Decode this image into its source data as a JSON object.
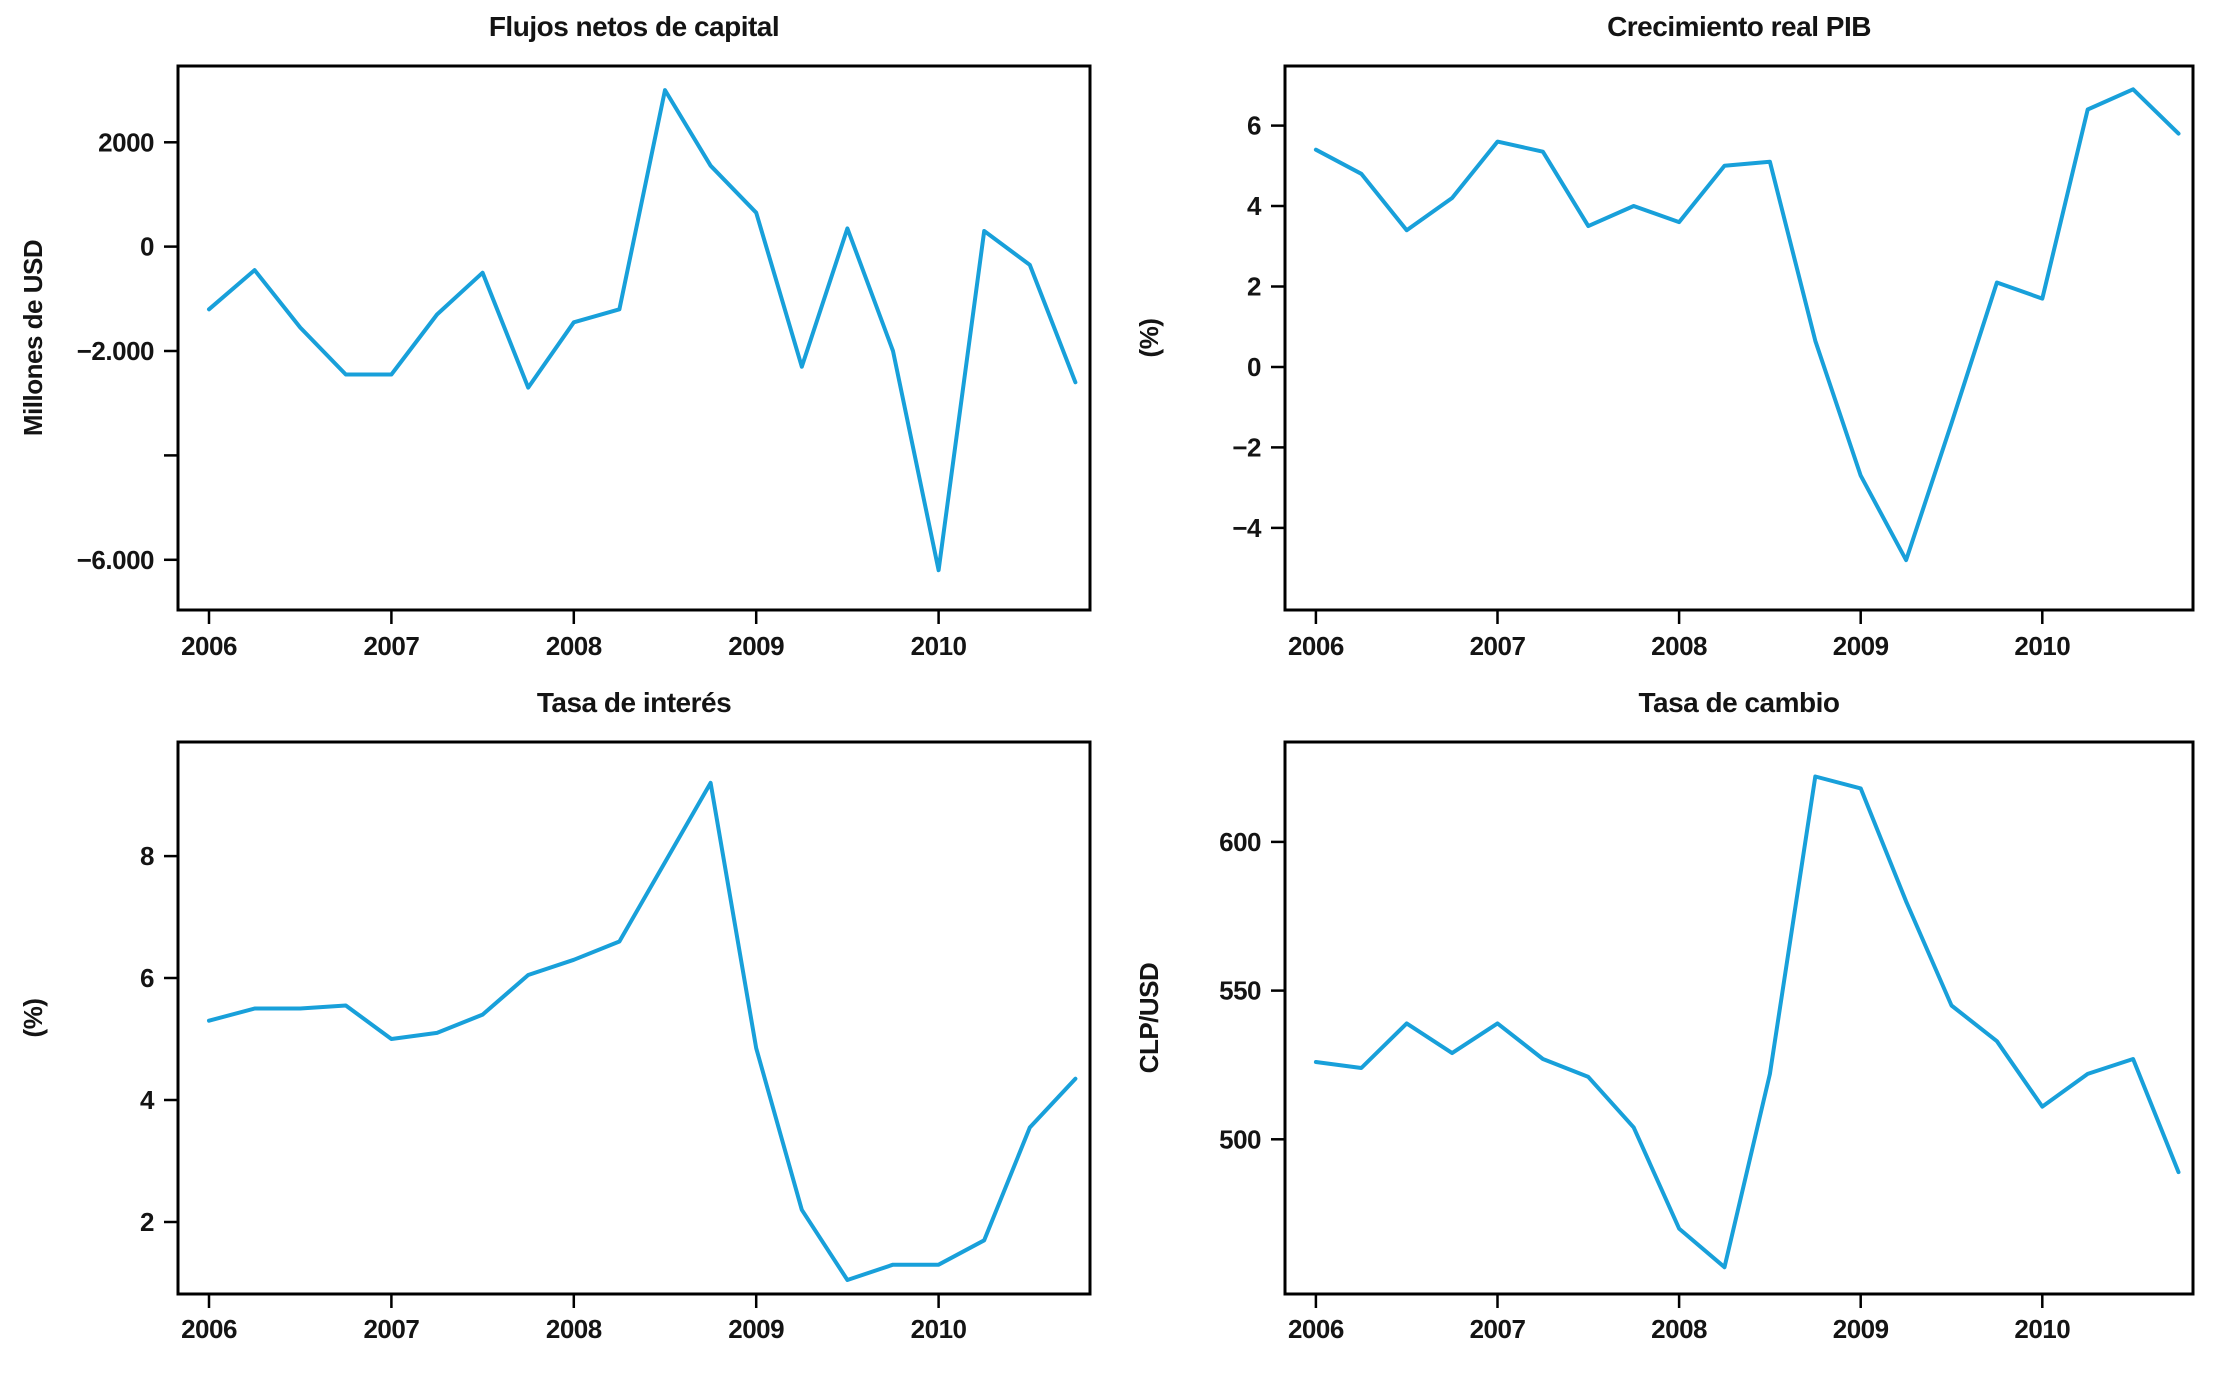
{
  "figure": {
    "background": "#ffffff",
    "line_color": "#18a0da",
    "axis_color": "#000000",
    "text_color": "#141414"
  },
  "chart_data": [
    {
      "type": "line",
      "title": "Flujos netos de capital",
      "ylabel": "Millones de USD",
      "xlabel": "",
      "grid": false,
      "legend_position": "none",
      "xlim": [
        2005.83,
        2010.83
      ],
      "ylim": [
        -6962,
        3461
      ],
      "x_ticks": [
        {
          "value": 2006,
          "label": "2006"
        },
        {
          "value": 2007,
          "label": "2007"
        },
        {
          "value": 2008,
          "label": "2008"
        },
        {
          "value": 2009,
          "label": "2009"
        },
        {
          "value": 2010,
          "label": "2010"
        }
      ],
      "y_ticks": [
        {
          "value": 2000,
          "label": "2000"
        },
        {
          "value": 0,
          "label": "0"
        },
        {
          "value": -2000,
          "label": "−2.000"
        },
        {
          "value": -4000,
          "label": ""
        },
        {
          "value": -6000,
          "label": "−6.000"
        }
      ],
      "x": [
        2006.0,
        2006.25,
        2006.5,
        2006.75,
        2007.0,
        2007.25,
        2007.5,
        2007.75,
        2008.0,
        2008.25,
        2008.5,
        2008.75,
        2009.0,
        2009.25,
        2009.5,
        2009.75,
        2010.0,
        2010.25,
        2010.5,
        2010.75
      ],
      "values": [
        -1200,
        -450,
        -1550,
        -2450,
        -2450,
        -1300,
        -500,
        -2700,
        -1450,
        -1200,
        3000,
        1550,
        650,
        -2300,
        350,
        -2000,
        -6200,
        300,
        -350,
        -2600
      ]
    },
    {
      "type": "line",
      "title": "Crecimiento real PIB",
      "ylabel": "(%)",
      "xlabel": "",
      "grid": false,
      "legend_position": "none",
      "xlim": [
        2005.83,
        2010.83
      ],
      "ylim": [
        -6.04,
        7.48
      ],
      "x_ticks": [
        {
          "value": 2006,
          "label": "2006"
        },
        {
          "value": 2007,
          "label": "2007"
        },
        {
          "value": 2008,
          "label": "2008"
        },
        {
          "value": 2009,
          "label": "2009"
        },
        {
          "value": 2010,
          "label": "2010"
        }
      ],
      "y_ticks": [
        {
          "value": 6,
          "label": "6"
        },
        {
          "value": 4,
          "label": "4"
        },
        {
          "value": 2,
          "label": "2"
        },
        {
          "value": 0,
          "label": "0"
        },
        {
          "value": -2,
          "label": "−2"
        },
        {
          "value": -4,
          "label": "−4"
        }
      ],
      "x": [
        2006.0,
        2006.25,
        2006.5,
        2006.75,
        2007.0,
        2007.25,
        2007.5,
        2007.75,
        2008.0,
        2008.25,
        2008.5,
        2008.75,
        2009.0,
        2009.25,
        2009.5,
        2009.75,
        2010.0,
        2010.25,
        2010.5,
        2010.75
      ],
      "values": [
        5.4,
        4.8,
        3.4,
        4.2,
        5.6,
        5.35,
        3.5,
        4.0,
        3.6,
        5.0,
        5.1,
        0.65,
        -2.7,
        -4.8,
        -1.4,
        2.1,
        1.7,
        6.4,
        6.9,
        5.8
      ]
    },
    {
      "type": "line",
      "title": "Tasa de interés",
      "ylabel": "(%)",
      "xlabel": "",
      "grid": false,
      "legend_position": "none",
      "xlim": [
        2005.83,
        2010.83
      ],
      "ylim": [
        0.82,
        9.87
      ],
      "x_ticks": [
        {
          "value": 2006,
          "label": "2006"
        },
        {
          "value": 2007,
          "label": "2007"
        },
        {
          "value": 2008,
          "label": "2008"
        },
        {
          "value": 2009,
          "label": "2009"
        },
        {
          "value": 2010,
          "label": "2010"
        }
      ],
      "y_ticks": [
        {
          "value": 8,
          "label": "8"
        },
        {
          "value": 6,
          "label": "6"
        },
        {
          "value": 4,
          "label": "4"
        },
        {
          "value": 2,
          "label": "2"
        }
      ],
      "x": [
        2006.0,
        2006.25,
        2006.5,
        2006.75,
        2007.0,
        2007.25,
        2007.5,
        2007.75,
        2008.0,
        2008.25,
        2008.5,
        2008.75,
        2009.0,
        2009.25,
        2009.5,
        2009.75,
        2010.0,
        2010.25,
        2010.5,
        2010.75
      ],
      "values": [
        5.3,
        5.5,
        5.5,
        5.55,
        5.0,
        5.1,
        5.4,
        6.05,
        6.3,
        6.6,
        7.9,
        9.2,
        4.85,
        2.2,
        1.05,
        1.3,
        1.3,
        1.7,
        3.55,
        4.35
      ]
    },
    {
      "type": "line",
      "title": "Tasa de cambio",
      "ylabel": "CLP/USD",
      "xlabel": "",
      "grid": false,
      "legend_position": "none",
      "xlim": [
        2005.83,
        2010.83
      ],
      "ylim": [
        448,
        633.6
      ],
      "x_ticks": [
        {
          "value": 2006,
          "label": "2006"
        },
        {
          "value": 2007,
          "label": "2007"
        },
        {
          "value": 2008,
          "label": "2008"
        },
        {
          "value": 2009,
          "label": "2009"
        },
        {
          "value": 2010,
          "label": "2010"
        }
      ],
      "y_ticks": [
        {
          "value": 600,
          "label": "600"
        },
        {
          "value": 550,
          "label": "550"
        },
        {
          "value": 500,
          "label": "500"
        }
      ],
      "x": [
        2006.0,
        2006.25,
        2006.5,
        2006.75,
        2007.0,
        2007.25,
        2007.5,
        2007.75,
        2008.0,
        2008.25,
        2008.5,
        2008.75,
        2009.0,
        2009.25,
        2009.5,
        2009.75,
        2010.0,
        2010.25,
        2010.5,
        2010.75
      ],
      "values": [
        526,
        524,
        539,
        529,
        539,
        527,
        521,
        504,
        470,
        457,
        522,
        622,
        618,
        580,
        545,
        533,
        511,
        522,
        527,
        489
      ]
    }
  ]
}
